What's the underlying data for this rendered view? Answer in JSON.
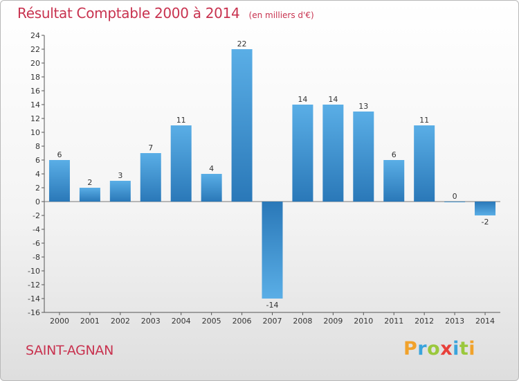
{
  "chart_data": {
    "type": "bar",
    "title": "Résultat Comptable 2000 à 2014",
    "subtitle": "(en milliers d'€)",
    "categories": [
      "2000",
      "2001",
      "2002",
      "2003",
      "2004",
      "2005",
      "2006",
      "2007",
      "2008",
      "2009",
      "2010",
      "2011",
      "2012",
      "2013",
      "2014"
    ],
    "values": [
      6,
      2,
      3,
      7,
      11,
      4,
      22,
      -14,
      14,
      14,
      13,
      6,
      11,
      0,
      -2
    ],
    "data_labels": [
      "6",
      "2",
      "3",
      "7",
      "11",
      "4",
      "22",
      "-14",
      "14",
      "14",
      "13",
      "6",
      "11",
      "0",
      "-2"
    ],
    "ylim": [
      -16,
      24
    ],
    "yticks": [
      24,
      22,
      20,
      18,
      16,
      14,
      12,
      10,
      8,
      6,
      4,
      2,
      0,
      -2,
      -4,
      -6,
      -8,
      -10,
      -12,
      -14,
      -16
    ],
    "ytick_labels": [
      "24",
      "22",
      "20",
      "18",
      "16",
      "14",
      "12",
      "10",
      "8",
      "6",
      "4",
      "2",
      "0",
      "-2",
      "-4",
      "-6",
      "-8",
      "-10",
      "-12",
      "-14",
      "-16"
    ],
    "xlabel": "",
    "ylabel": "",
    "grid": false,
    "legend": "none",
    "bar_color_light": "#5aaee6",
    "bar_color_dark": "#2a78b8",
    "axis_color": "#555555"
  },
  "footer": {
    "commune": "SAINT-AGNAN"
  },
  "brand": {
    "text": "Proxiti",
    "letters": [
      {
        "ch": "P",
        "color": "#f1a22b"
      },
      {
        "ch": "r",
        "color": "#3aa4dc"
      },
      {
        "ch": "o",
        "color": "#9ac83c"
      },
      {
        "ch": "x",
        "color": "#e8403a"
      },
      {
        "ch": "i",
        "color": "#3aa4dc"
      },
      {
        "ch": "t",
        "color": "#9ac83c"
      },
      {
        "ch": "i",
        "color": "#f1a22b"
      }
    ]
  }
}
